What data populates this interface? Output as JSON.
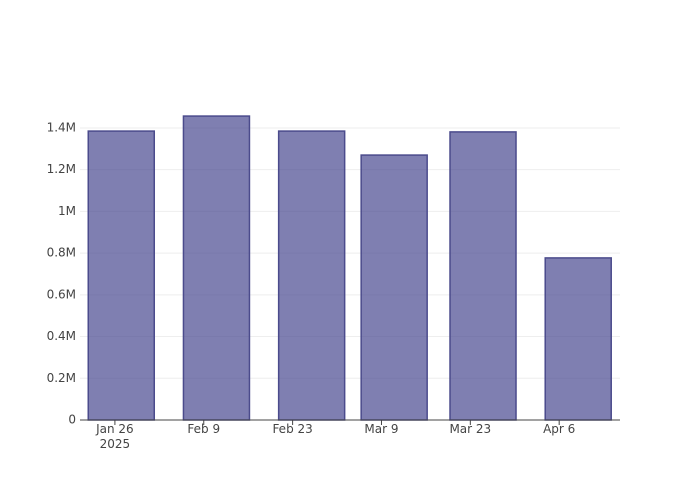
{
  "chart_data": {
    "type": "bar",
    "x": [
      "2025-01-27",
      "2025-02-11",
      "2025-02-26",
      "2025-03-11",
      "2025-03-25",
      "2025-04-09"
    ],
    "values": [
      1385000,
      1457000,
      1385000,
      1270000,
      1381000,
      777000
    ],
    "color": "rgba(72,72,144,0.7)",
    "line_color": "#4b4b8c",
    "xlim": [
      "2025-01-20T12:00",
      "2025-04-15T14:00"
    ],
    "xticks": [
      {
        "value": "2025-01-26",
        "label": "Jan 26\n2025"
      },
      {
        "value": "2025-02-09",
        "label": "Feb 9"
      },
      {
        "value": "2025-02-23",
        "label": "Feb 23"
      },
      {
        "value": "2025-03-09",
        "label": "Mar 9"
      },
      {
        "value": "2025-03-23",
        "label": "Mar 23"
      },
      {
        "value": "2025-04-06",
        "label": "Apr 6"
      }
    ],
    "ylim": [
      0,
      1534000
    ],
    "yticks": [
      0,
      {
        "value": 200000,
        "label": "0.2M"
      },
      {
        "value": 400000,
        "label": "0.4M"
      },
      {
        "value": 600000,
        "label": "0.6M"
      },
      {
        "value": 800000,
        "label": "0.8M"
      },
      {
        "value": 1000000,
        "label": "1M"
      },
      {
        "value": 1200000,
        "label": "1.2M"
      },
      {
        "value": 1400000,
        "label": "1.4M"
      }
    ],
    "grid": true
  }
}
